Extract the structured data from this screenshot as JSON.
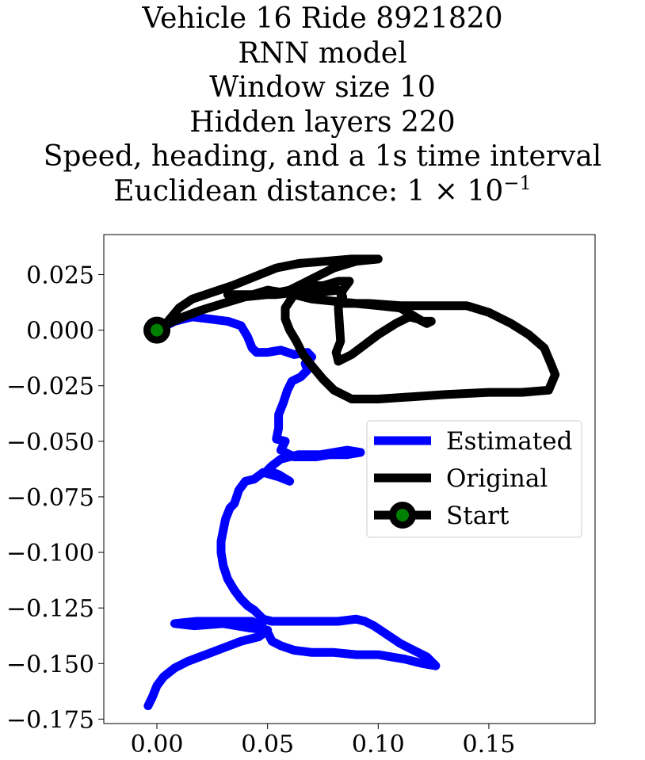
{
  "chart_data": {
    "type": "line",
    "title_lines": [
      "Vehicle 16 Ride 8921820",
      "RNN model",
      "Window size 10",
      "Hidden layers 220",
      "Speed, heading, and a 1s time interval"
    ],
    "title_last_prefix": "Euclidean distance: 1 × 10",
    "title_last_exponent": "−1",
    "xlabel": "",
    "ylabel": "",
    "xlim": [
      -0.024,
      0.198
    ],
    "ylim": [
      -0.177,
      0.043
    ],
    "xticks": [
      0.0,
      0.05,
      0.1,
      0.15
    ],
    "xtick_labels": [
      "0.00",
      "0.05",
      "0.10",
      "0.15"
    ],
    "yticks": [
      0.025,
      0.0,
      -0.025,
      -0.05,
      -0.075,
      -0.1,
      -0.125,
      -0.15,
      -0.175
    ],
    "ytick_labels": [
      "0.025",
      "0.000",
      "−0.025",
      "−0.050",
      "−0.075",
      "−0.100",
      "−0.125",
      "−0.150",
      "−0.175"
    ],
    "grid": false,
    "legend_position": "center-right",
    "series": [
      {
        "name": "Estimated",
        "color": "#0000ff",
        "points": [
          [
            0.0,
            0.0
          ],
          [
            0.008,
            0.004
          ],
          [
            0.016,
            0.006
          ],
          [
            0.024,
            0.005
          ],
          [
            0.032,
            0.004
          ],
          [
            0.038,
            0.002
          ],
          [
            0.041,
            -0.003
          ],
          [
            0.043,
            -0.008
          ],
          [
            0.045,
            -0.01
          ],
          [
            0.05,
            -0.01
          ],
          [
            0.056,
            -0.009
          ],
          [
            0.062,
            -0.011
          ],
          [
            0.068,
            -0.01
          ],
          [
            0.07,
            -0.012
          ],
          [
            0.067,
            -0.015
          ],
          [
            0.068,
            -0.018
          ],
          [
            0.065,
            -0.021
          ],
          [
            0.061,
            -0.023
          ],
          [
            0.059,
            -0.027
          ],
          [
            0.057,
            -0.033
          ],
          [
            0.055,
            -0.038
          ],
          [
            0.055,
            -0.044
          ],
          [
            0.054,
            -0.049
          ],
          [
            0.058,
            -0.05
          ],
          [
            0.056,
            -0.054
          ],
          [
            0.062,
            -0.057
          ],
          [
            0.072,
            -0.057
          ],
          [
            0.078,
            -0.056
          ],
          [
            0.086,
            -0.056
          ],
          [
            0.092,
            -0.055
          ],
          [
            0.086,
            -0.054
          ],
          [
            0.074,
            -0.056
          ],
          [
            0.064,
            -0.056
          ],
          [
            0.056,
            -0.058
          ],
          [
            0.052,
            -0.061
          ],
          [
            0.05,
            -0.063
          ],
          [
            0.055,
            -0.065
          ],
          [
            0.06,
            -0.068
          ],
          [
            0.055,
            -0.066
          ],
          [
            0.048,
            -0.064
          ],
          [
            0.044,
            -0.067
          ],
          [
            0.04,
            -0.068
          ],
          [
            0.037,
            -0.072
          ],
          [
            0.035,
            -0.078
          ],
          [
            0.033,
            -0.08
          ],
          [
            0.031,
            -0.085
          ],
          [
            0.03,
            -0.09
          ],
          [
            0.029,
            -0.095
          ],
          [
            0.029,
            -0.1
          ],
          [
            0.03,
            -0.106
          ],
          [
            0.032,
            -0.112
          ],
          [
            0.035,
            -0.117
          ],
          [
            0.038,
            -0.121
          ],
          [
            0.041,
            -0.124
          ],
          [
            0.044,
            -0.126
          ],
          [
            0.046,
            -0.128
          ],
          [
            0.048,
            -0.13
          ],
          [
            0.052,
            -0.131
          ],
          [
            0.058,
            -0.131
          ],
          [
            0.064,
            -0.131
          ],
          [
            0.072,
            -0.131
          ],
          [
            0.082,
            -0.131
          ],
          [
            0.09,
            -0.13
          ],
          [
            0.094,
            -0.131
          ],
          [
            0.098,
            -0.133
          ],
          [
            0.104,
            -0.137
          ],
          [
            0.11,
            -0.141
          ],
          [
            0.116,
            -0.144
          ],
          [
            0.122,
            -0.147
          ],
          [
            0.126,
            -0.151
          ],
          [
            0.12,
            -0.15
          ],
          [
            0.112,
            -0.148
          ],
          [
            0.1,
            -0.146
          ],
          [
            0.09,
            -0.146
          ],
          [
            0.08,
            -0.145
          ],
          [
            0.07,
            -0.145
          ],
          [
            0.062,
            -0.144
          ],
          [
            0.056,
            -0.142
          ],
          [
            0.052,
            -0.14
          ],
          [
            0.05,
            -0.136
          ],
          [
            0.047,
            -0.133
          ],
          [
            0.043,
            -0.131
          ],
          [
            0.036,
            -0.131
          ],
          [
            0.028,
            -0.131
          ],
          [
            0.018,
            -0.131
          ],
          [
            0.008,
            -0.132
          ],
          [
            0.017,
            -0.133
          ],
          [
            0.03,
            -0.132
          ],
          [
            0.042,
            -0.134
          ],
          [
            0.05,
            -0.135
          ],
          [
            0.046,
            -0.138
          ],
          [
            0.038,
            -0.14
          ],
          [
            0.03,
            -0.143
          ],
          [
            0.022,
            -0.146
          ],
          [
            0.014,
            -0.149
          ],
          [
            0.008,
            -0.152
          ],
          [
            0.003,
            -0.156
          ],
          [
            0.0,
            -0.16
          ],
          [
            -0.002,
            -0.165
          ],
          [
            -0.004,
            -0.169
          ]
        ]
      },
      {
        "name": "Original",
        "color": "#000000",
        "points": [
          [
            0.0,
            0.0
          ],
          [
            0.005,
            0.004
          ],
          [
            0.01,
            0.01
          ],
          [
            0.016,
            0.014
          ],
          [
            0.025,
            0.017
          ],
          [
            0.034,
            0.02
          ],
          [
            0.044,
            0.024
          ],
          [
            0.054,
            0.028
          ],
          [
            0.064,
            0.03
          ],
          [
            0.076,
            0.031
          ],
          [
            0.088,
            0.032
          ],
          [
            0.1,
            0.032
          ],
          [
            0.09,
            0.031
          ],
          [
            0.08,
            0.028
          ],
          [
            0.07,
            0.023
          ],
          [
            0.06,
            0.018
          ],
          [
            0.05,
            0.016
          ],
          [
            0.04,
            0.015
          ],
          [
            0.032,
            0.016
          ],
          [
            0.042,
            0.016
          ],
          [
            0.054,
            0.016
          ],
          [
            0.063,
            0.017
          ],
          [
            0.073,
            0.017
          ],
          [
            0.082,
            0.018
          ],
          [
            0.084,
            0.015
          ],
          [
            0.084,
            0.012
          ],
          [
            0.086,
            0.012
          ],
          [
            0.096,
            0.012
          ],
          [
            0.11,
            0.011
          ],
          [
            0.125,
            0.011
          ],
          [
            0.14,
            0.011
          ],
          [
            0.15,
            0.008
          ],
          [
            0.16,
            0.003
          ],
          [
            0.168,
            -0.002
          ],
          [
            0.175,
            -0.008
          ],
          [
            0.178,
            -0.015
          ],
          [
            0.18,
            -0.02
          ],
          [
            0.177,
            -0.027
          ],
          [
            0.165,
            -0.028
          ],
          [
            0.15,
            -0.028
          ],
          [
            0.13,
            -0.029
          ],
          [
            0.115,
            -0.03
          ],
          [
            0.1,
            -0.031
          ],
          [
            0.088,
            -0.031
          ],
          [
            0.08,
            -0.027
          ],
          [
            0.075,
            -0.022
          ],
          [
            0.07,
            -0.016
          ],
          [
            0.066,
            -0.011
          ],
          [
            0.063,
            -0.005
          ],
          [
            0.06,
            0.0
          ],
          [
            0.058,
            0.005
          ],
          [
            0.058,
            0.01
          ],
          [
            0.062,
            0.016
          ],
          [
            0.068,
            0.02
          ],
          [
            0.075,
            0.02
          ],
          [
            0.082,
            0.022
          ],
          [
            0.087,
            0.022
          ],
          [
            0.084,
            0.018
          ],
          [
            0.082,
            0.01
          ],
          [
            0.083,
            -0.005
          ],
          [
            0.081,
            -0.01
          ],
          [
            0.082,
            -0.014
          ],
          [
            0.088,
            -0.011
          ],
          [
            0.092,
            -0.008
          ],
          [
            0.1,
            -0.002
          ],
          [
            0.108,
            0.003
          ],
          [
            0.114,
            0.006
          ],
          [
            0.118,
            0.005
          ],
          [
            0.122,
            0.003
          ],
          [
            0.124,
            0.004
          ],
          [
            0.12,
            0.004
          ],
          [
            0.115,
            0.007
          ],
          [
            0.11,
            0.01
          ],
          [
            0.1,
            0.011
          ],
          [
            0.09,
            0.012
          ],
          [
            0.08,
            0.013
          ],
          [
            0.07,
            0.014
          ],
          [
            0.062,
            0.016
          ],
          [
            0.05,
            0.018
          ],
          [
            0.04,
            0.015
          ],
          [
            0.03,
            0.012
          ],
          [
            0.02,
            0.009
          ],
          [
            0.012,
            0.006
          ],
          [
            0.005,
            0.003
          ],
          [
            0.0,
            0.0
          ]
        ]
      }
    ],
    "markers": [
      {
        "name": "Start",
        "x": 0.0,
        "y": 0.0,
        "edge_color": "#000000",
        "face_color": "#008000"
      }
    ]
  }
}
